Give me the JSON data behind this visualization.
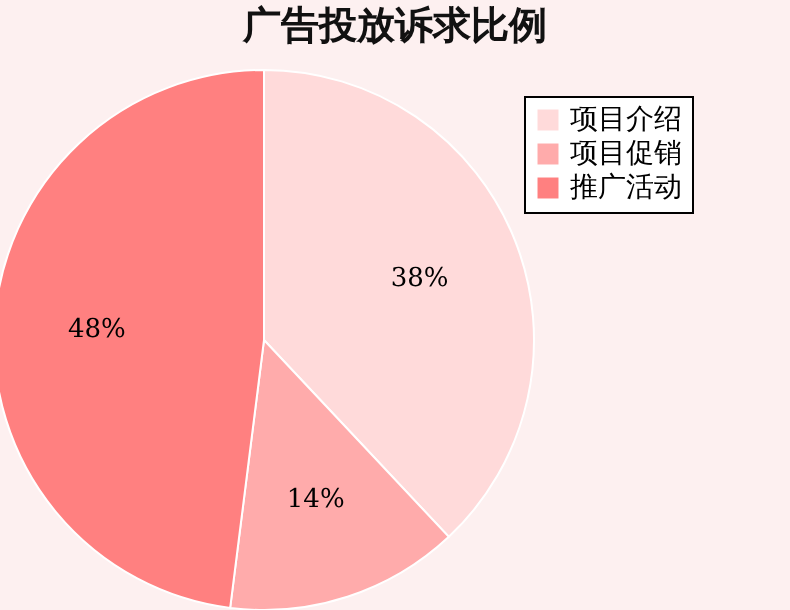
{
  "chart_data": {
    "type": "pie",
    "title": "广告投放诉求比例",
    "categories": [
      "项目介绍",
      "项目促销",
      "推广活动"
    ],
    "values": [
      38,
      14,
      48
    ],
    "colors": [
      "#ffdada",
      "#ffabab",
      "#ff8080"
    ],
    "value_labels": [
      "38%",
      "14%",
      "48%"
    ],
    "legend": "top right"
  }
}
